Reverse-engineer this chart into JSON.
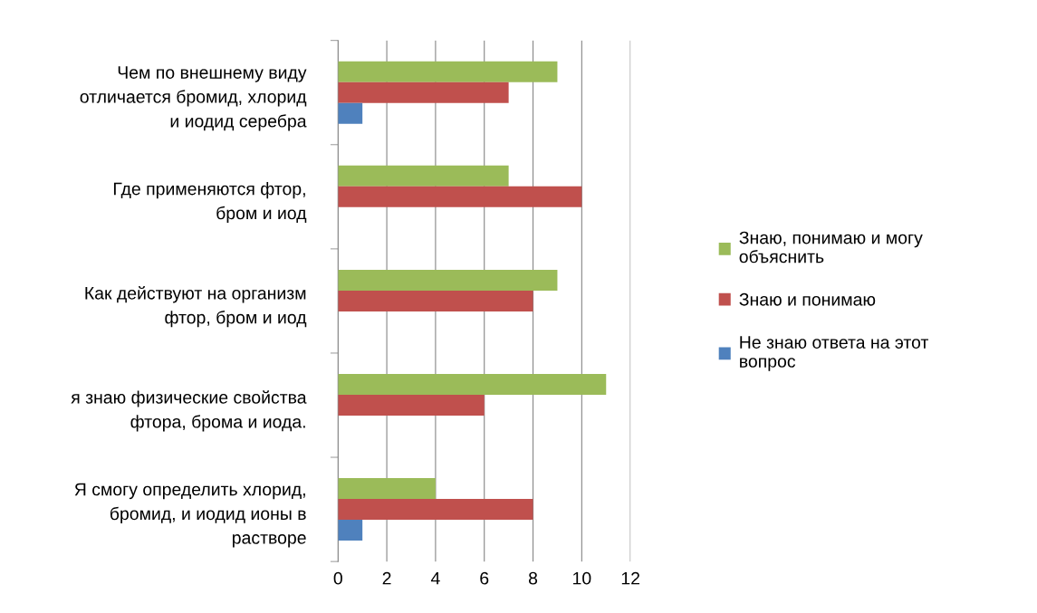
{
  "chart_data": {
    "type": "bar",
    "orientation": "horizontal",
    "categories": [
      "Чем по внешнему виду\nотличается бромид, хлорид\nи иодид серебра",
      "Где применяются фтор,\nбром и иод",
      "Как действуют на организм\nфтор, бром и иод",
      "я знаю физические свойства\nфтора, брома и иода.",
      "Я смогу определить хлорид,\nбромид, и иодид ионы в\nрастворе"
    ],
    "series": [
      {
        "name": "Знаю, понимаю и могу\nобъяснить",
        "color": "#9bbb59",
        "values": [
          9,
          7,
          9,
          11,
          4
        ]
      },
      {
        "name": "Знаю и понимаю",
        "color": "#c0504d",
        "values": [
          7,
          10,
          8,
          6,
          8
        ]
      },
      {
        "name": "Не знаю ответа на этот\nвопрос",
        "color": "#4f81bd",
        "values": [
          1,
          null,
          null,
          null,
          1
        ]
      }
    ],
    "xlim": [
      0,
      12
    ],
    "xticks": [
      0,
      2,
      4,
      6,
      8,
      10,
      12
    ],
    "grid": "x",
    "legend": "right"
  }
}
